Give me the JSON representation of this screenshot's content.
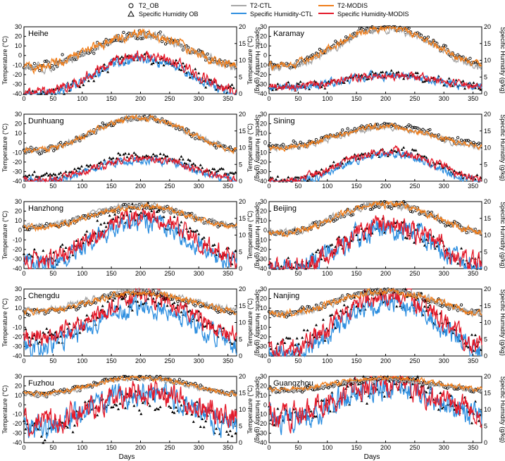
{
  "legend": {
    "items": [
      {
        "label": "T2_OB",
        "kind": "circle",
        "color": "#000000"
      },
      {
        "label": "Specific Humidity OB",
        "kind": "triangle",
        "color": "#000000"
      },
      {
        "label": "T2-CTL",
        "kind": "line",
        "color": "#a6a6a6"
      },
      {
        "label": "Specific Humidity-CTL",
        "kind": "line",
        "color": "#2e8fe0"
      },
      {
        "label": "T2-MODIS",
        "kind": "line",
        "color": "#ef7d1a"
      },
      {
        "label": "Specific Humidity-MODIS",
        "kind": "line",
        "color": "#e41a2a"
      }
    ]
  },
  "axes": {
    "xlabel": "Days",
    "left_label": "Temperature (°C)",
    "right_label": "Specific Humidity (g/kg)",
    "x_ticks": [
      "0",
      "50",
      "100",
      "150",
      "200",
      "250",
      "300",
      "350"
    ],
    "left_ticks": [
      "30",
      "20",
      "10",
      "0",
      "-10",
      "-20",
      "-30",
      "-40"
    ],
    "right_ticks": [
      "20",
      "15",
      "10",
      "5",
      "0"
    ]
  },
  "colors": {
    "t2_ob": "#000000",
    "q_ob": "#000000",
    "t2_ctl": "#a6a6a6",
    "q_ctl": "#2e8fe0",
    "t2_modis": "#ef7d1a",
    "q_modis": "#e41a2a"
  },
  "chart_data": [
    {
      "type": "line",
      "station": "Heihe",
      "x_range": [
        0,
        365
      ],
      "ylim_left": [
        -40,
        30
      ],
      "ylim_right": [
        0,
        20
      ],
      "temperature": {
        "mean": 5,
        "amp": 17,
        "noise": 4,
        "ob_offset": 0,
        "ctl_offset": -1,
        "modis_offset": 0
      },
      "humidity": {
        "mean": 5.5,
        "amp": 5.5,
        "noise": 1.3,
        "ob_offset": 0,
        "ctl_offset": -0.6,
        "modis_offset": 0.3
      }
    },
    {
      "type": "line",
      "station": "Karamay",
      "x_range": [
        0,
        365
      ],
      "ylim_left": [
        -40,
        30
      ],
      "ylim_right": [
        0,
        20
      ],
      "temperature": {
        "mean": 9,
        "amp": 20,
        "noise": 3,
        "ob_offset": 1,
        "ctl_offset": -2,
        "modis_offset": 0
      },
      "humidity": {
        "mean": 3.8,
        "amp": 1.8,
        "noise": 1,
        "ob_offset": 0,
        "ctl_offset": -0.3,
        "modis_offset": 0
      }
    },
    {
      "type": "line",
      "station": "Dunhuang",
      "x_range": [
        0,
        365
      ],
      "ylim_left": [
        -40,
        30
      ],
      "ylim_right": [
        0,
        20
      ],
      "temperature": {
        "mean": 9,
        "amp": 17,
        "noise": 2.5,
        "ob_offset": 0,
        "ctl_offset": 0,
        "modis_offset": 0
      },
      "humidity": {
        "mean": 3.5,
        "amp": 3.2,
        "noise": 0.9,
        "ob_offset": 1,
        "ctl_offset": -0.3,
        "modis_offset": 0
      }
    },
    {
      "type": "line",
      "station": "Sining",
      "x_range": [
        0,
        365
      ],
      "ylim_left": [
        -40,
        30
      ],
      "ylim_right": [
        0,
        20
      ],
      "temperature": {
        "mean": 6,
        "amp": 11,
        "noise": 2.5,
        "ob_offset": 1.5,
        "ctl_offset": -1,
        "modis_offset": 0
      },
      "humidity": {
        "mean": 4.5,
        "amp": 4.5,
        "noise": 1,
        "ob_offset": 0,
        "ctl_offset": -1,
        "modis_offset": 0
      }
    },
    {
      "type": "line",
      "station": "Hanzhong",
      "x_range": [
        0,
        365
      ],
      "ylim_left": [
        -40,
        30
      ],
      "ylim_right": [
        0,
        20
      ],
      "temperature": {
        "mean": 14,
        "amp": 11,
        "noise": 2.5,
        "ob_offset": 0,
        "ctl_offset": 1,
        "modis_offset": 0
      },
      "humidity": {
        "mean": 9,
        "amp": 6.5,
        "noise": 2.2,
        "ob_offset": 1,
        "ctl_offset": -1.5,
        "modis_offset": 0
      }
    },
    {
      "type": "line",
      "station": "Beijing",
      "x_range": [
        0,
        365
      ],
      "ylim_left": [
        -40,
        30
      ],
      "ylim_right": [
        0,
        20
      ],
      "temperature": {
        "mean": 12,
        "amp": 15,
        "noise": 3,
        "ob_offset": 0,
        "ctl_offset": 0.5,
        "modis_offset": 0
      },
      "humidity": {
        "mean": 6.5,
        "amp": 6.5,
        "noise": 2.5,
        "ob_offset": 0,
        "ctl_offset": -0.8,
        "modis_offset": 0
      }
    },
    {
      "type": "line",
      "station": "Chengdu",
      "x_range": [
        0,
        365
      ],
      "ylim_left": [
        -40,
        30
      ],
      "ylim_right": [
        0,
        20
      ],
      "temperature": {
        "mean": 16,
        "amp": 10,
        "noise": 2.5,
        "ob_offset": -0.5,
        "ctl_offset": 2,
        "modis_offset": 0
      },
      "humidity": {
        "mean": 11,
        "amp": 6,
        "noise": 2.3,
        "ob_offset": 0,
        "ctl_offset": -2.2,
        "modis_offset": 0.5
      }
    },
    {
      "type": "line",
      "station": "Nanjing",
      "x_range": [
        0,
        365
      ],
      "ylim_left": [
        -40,
        30
      ],
      "ylim_right": [
        0,
        20
      ],
      "temperature": {
        "mean": 16,
        "amp": 12,
        "noise": 3,
        "ob_offset": 0,
        "ctl_offset": 0,
        "modis_offset": 0
      },
      "humidity": {
        "mean": 10,
        "amp": 8,
        "noise": 2.5,
        "ob_offset": 0,
        "ctl_offset": -1.5,
        "modis_offset": 0
      }
    },
    {
      "type": "line",
      "station": "Fuzhou",
      "x_range": [
        0,
        365
      ],
      "ylim_left": [
        -40,
        30
      ],
      "ylim_right": [
        0,
        20
      ],
      "temperature": {
        "mean": 20,
        "amp": 9,
        "noise": 2,
        "ob_offset": 0,
        "ctl_offset": -1,
        "modis_offset": 0
      },
      "humidity": {
        "mean": 10,
        "amp": 5,
        "noise": 3,
        "ob_offset": -1,
        "ctl_offset": 0,
        "modis_offset": 1
      }
    },
    {
      "type": "line",
      "station": "Guangzhou",
      "x_range": [
        0,
        365
      ],
      "ylim_left": [
        -40,
        30
      ],
      "ylim_right": [
        0,
        20
      ],
      "temperature": {
        "mean": 22,
        "amp": 6,
        "noise": 2,
        "ob_offset": -1,
        "ctl_offset": -1,
        "modis_offset": 0.5
      },
      "humidity": {
        "mean": 13,
        "amp": 5,
        "noise": 3,
        "ob_offset": 0,
        "ctl_offset": -0.8,
        "modis_offset": 0
      }
    }
  ]
}
